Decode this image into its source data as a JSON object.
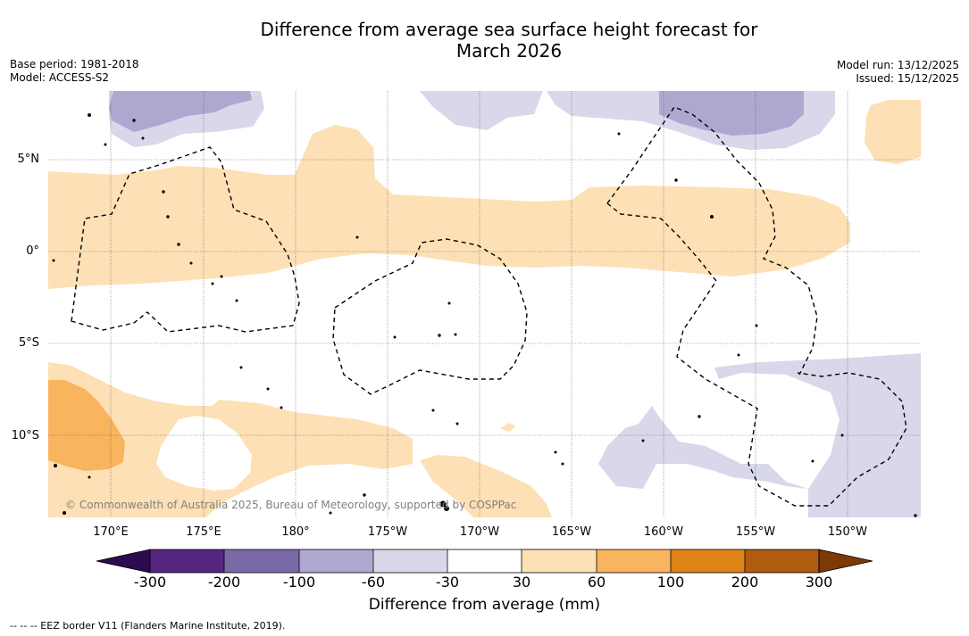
{
  "title": {
    "line1": "Difference from average sea surface height forecast for",
    "line2": "March 2026"
  },
  "meta_left": {
    "base_period": "Base period: 1981-2018",
    "model": "Model: ACCESS-S2"
  },
  "meta_right": {
    "model_run": "Model run: 13/12/2025",
    "issued": "Issued: 15/12/2025"
  },
  "map": {
    "lat_labels": [
      "5°N",
      "0°",
      "5°S",
      "10°S"
    ],
    "lon_labels": [
      "170°E",
      "175°E",
      "180°",
      "175°W",
      "170°W",
      "165°W",
      "160°W",
      "155°W",
      "150°W"
    ],
    "copyright": "© Commonwealth of Australia 2025, Bureau of Meteorology, supported by COSPPac"
  },
  "colorbar": {
    "labels": [
      "-300",
      "-200",
      "-100",
      "-60",
      "-30",
      "30",
      "60",
      "100",
      "200",
      "300"
    ],
    "colors": [
      "#2d0b4f",
      "#55267f",
      "#7b6aa8",
      "#aea8d1",
      "#d8d8ea",
      "#ffffff",
      "#fde0b5",
      "#f8b45e",
      "#df8419",
      "#b05b10",
      "#7d3906"
    ],
    "title": "Difference from average (mm)"
  },
  "legend_note": "--  --  -- EEZ border V11 (Flanders Marine Institute, 2019)."
}
